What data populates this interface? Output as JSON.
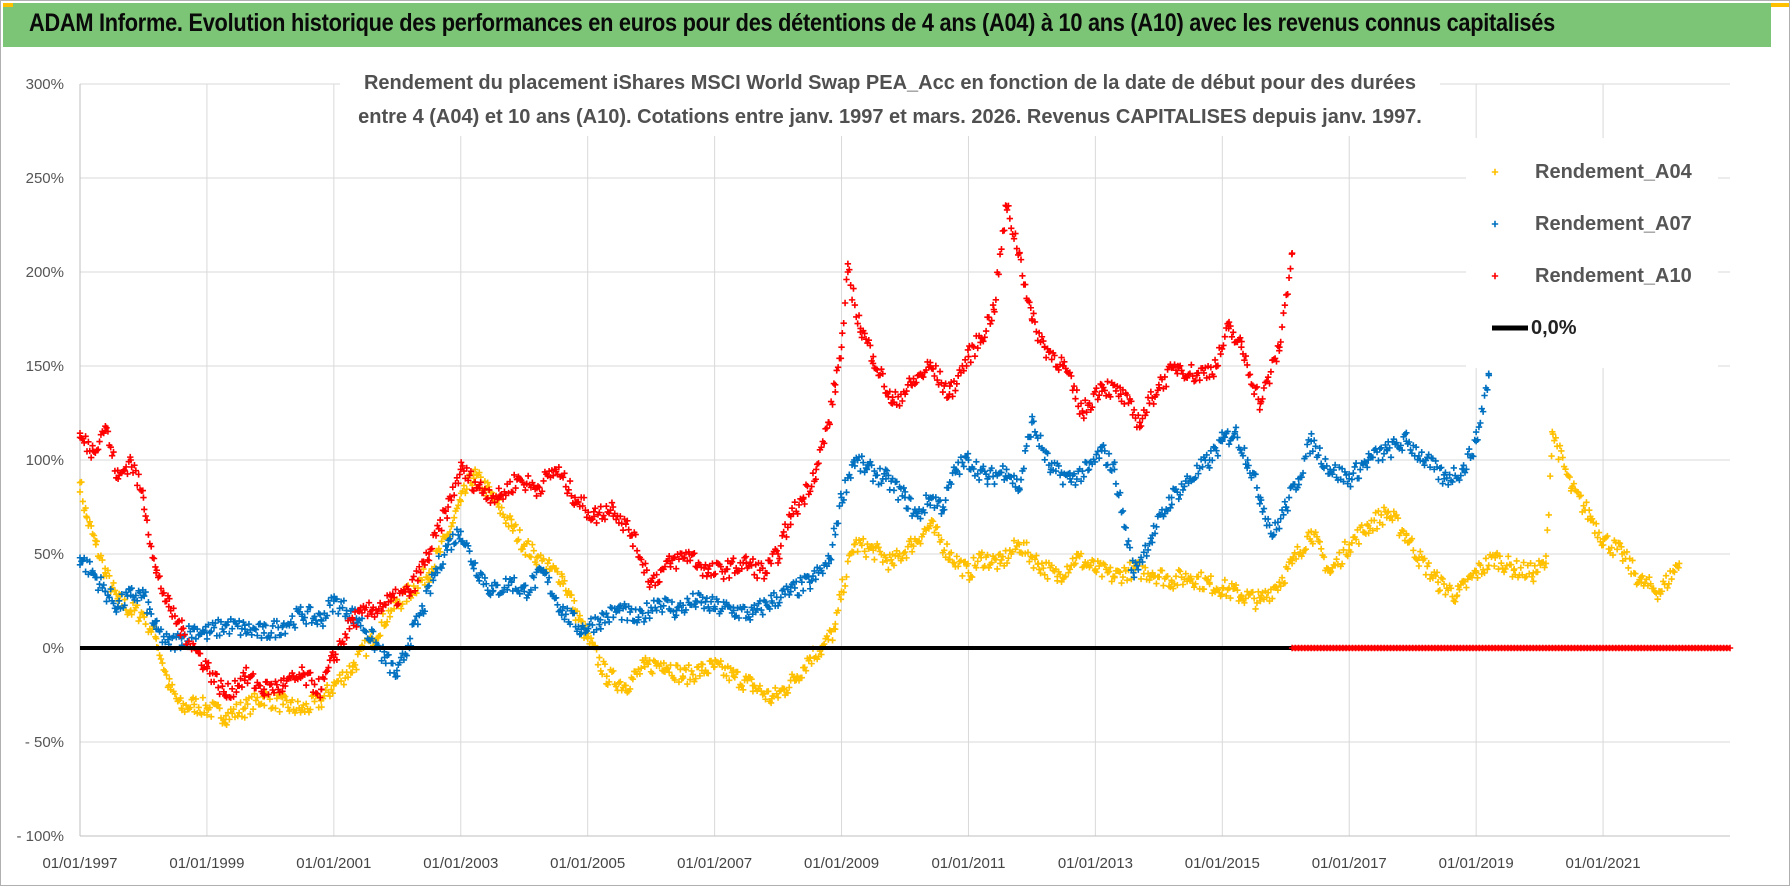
{
  "header": {
    "title": "ADAM Informe. Evolution historique des performances en euros pour des détentions de 4 ans (A04) à 10 ans (A10) avec les revenus connus capitalisés"
  },
  "colors": {
    "banner": "#7cc576",
    "banner_accent": "#ffc000",
    "a04": "#ffc000",
    "a07": "#0070c0",
    "a10": "#ff0000",
    "zero": "#000000",
    "grid": "#d9d9d9"
  },
  "chart_data": {
    "type": "scatter",
    "title_lines": [
      "Rendement du placement iShares MSCI World Swap PEA_Acc en fonction de la date de début pour des durées",
      "entre 4 (A04) et 10 ans (A10). Cotations entre janv. 1997 et mars. 2026. Revenus CAPITALISES depuis janv. 1997."
    ],
    "ylim": [
      -100,
      300
    ],
    "y_ticks": [
      300,
      250,
      200,
      150,
      100,
      50,
      0,
      -50,
      -100
    ],
    "y_tick_labels": [
      "300%",
      "250%",
      "200%",
      "150%",
      "100%",
      "50%",
      "0%",
      "- 50%",
      "- 100%"
    ],
    "xlim": [
      1997.0,
      2023.0
    ],
    "x_ticks": [
      1997,
      1999,
      2001,
      2003,
      2005,
      2007,
      2009,
      2011,
      2013,
      2015,
      2017,
      2019,
      2021
    ],
    "x_tick_labels": [
      "01/01/1997",
      "01/01/1999",
      "01/01/2001",
      "01/01/2003",
      "01/01/2005",
      "01/01/2007",
      "01/01/2009",
      "01/01/2011",
      "01/01/2013",
      "01/01/2015",
      "01/01/2017",
      "01/01/2019",
      "01/01/2021"
    ],
    "grid": true,
    "legend_position": "top-right",
    "series": [
      {
        "name": "Rendement_A04",
        "marker": "+",
        "color": "#ffc000",
        "x": [
          1997.0,
          1997.1,
          1997.25,
          1997.4,
          1997.6,
          1997.8,
          1998.0,
          1998.2,
          1998.4,
          1998.6,
          1998.8,
          1999.0,
          1999.3,
          1999.6,
          1999.9,
          2000.2,
          2000.5,
          2000.8,
          2001.0,
          2001.3,
          2001.6,
          2001.9,
          2002.2,
          2002.5,
          2002.8,
          2003.0,
          2003.2,
          2003.4,
          2003.6,
          2003.8,
          2004.0,
          2004.2,
          2004.4,
          2004.6,
          2004.8,
          2005.0,
          2005.3,
          2005.6,
          2005.9,
          2006.2,
          2006.5,
          2006.8,
          2007.0,
          2007.3,
          2007.6,
          2007.9,
          2008.1,
          2008.3,
          2008.5,
          2008.7,
          2008.9,
          2009.0,
          2009.2,
          2009.5,
          2009.8,
          2010.1,
          2010.4,
          2010.7,
          2011.0,
          2011.2,
          2011.5,
          2011.8,
          2012.1,
          2012.4,
          2012.7,
          2013.0,
          2013.3,
          2013.6,
          2013.9,
          2014.2,
          2014.5,
          2014.8,
          2015.0,
          2015.3,
          2015.6,
          2015.9,
          2016.1,
          2016.4,
          2016.7,
          2017.0,
          2017.3,
          2017.6,
          2017.9,
          2018.1,
          2018.4,
          2018.7,
          2019.0,
          2019.3,
          2019.6,
          2019.9,
          2020.1,
          2020.2,
          2020.5,
          2020.8,
          2021.0,
          2021.3,
          2021.6,
          2021.9,
          2022.2
        ],
        "y": [
          88,
          70,
          55,
          40,
          25,
          20,
          18,
          5,
          -20,
          -32,
          -30,
          -32,
          -36,
          -32,
          -26,
          -30,
          -33,
          -28,
          -20,
          -10,
          5,
          20,
          30,
          40,
          60,
          78,
          92,
          85,
          75,
          65,
          55,
          48,
          42,
          38,
          20,
          5,
          -15,
          -20,
          -10,
          -8,
          -15,
          -12,
          -10,
          -15,
          -20,
          -27,
          -22,
          -15,
          -5,
          0,
          10,
          30,
          55,
          52,
          45,
          55,
          65,
          50,
          40,
          48,
          45,
          55,
          45,
          38,
          48,
          42,
          38,
          42,
          40,
          36,
          38,
          34,
          32,
          28,
          25,
          35,
          45,
          62,
          40,
          55,
          65,
          72,
          60,
          48,
          35,
          28,
          40,
          48,
          42,
          40,
          45,
          115,
          85,
          70,
          58,
          50,
          35,
          30,
          45
        ]
      },
      {
        "name": "Rendement_A07",
        "marker": "+",
        "color": "#0070c0",
        "x": [
          1997.0,
          1997.2,
          1997.4,
          1997.6,
          1997.8,
          1998.0,
          1998.2,
          1998.4,
          1998.6,
          1998.8,
          1999.0,
          1999.3,
          1999.6,
          1999.9,
          2000.2,
          2000.5,
          2000.8,
          2001.0,
          2001.2,
          2001.4,
          2001.6,
          2001.8,
          2002.0,
          2002.2,
          2002.4,
          2002.6,
          2002.8,
          2003.0,
          2003.2,
          2003.5,
          2003.8,
          2004.0,
          2004.3,
          2004.6,
          2004.9,
          2005.2,
          2005.5,
          2005.8,
          2006.1,
          2006.4,
          2006.7,
          2007.0,
          2007.3,
          2007.6,
          2007.9,
          2008.2,
          2008.5,
          2008.8,
          2009.0,
          2009.2,
          2009.4,
          2009.7,
          2010.0,
          2010.2,
          2010.4,
          2010.6,
          2010.8,
          2011.0,
          2011.3,
          2011.6,
          2011.8,
          2012.0,
          2012.3,
          2012.6,
          2012.9,
          2013.1,
          2013.3,
          2013.6,
          2013.9,
          2014.2,
          2014.5,
          2014.8,
          2015.0,
          2015.2,
          2015.4,
          2015.6,
          2015.8,
          2016.0,
          2016.2,
          2016.4,
          2016.7,
          2017.0,
          2017.3,
          2017.6,
          2017.9,
          2018.2,
          2018.5,
          2018.8,
          2019.0,
          2019.2
        ],
        "y": [
          48,
          40,
          30,
          22,
          28,
          28,
          10,
          2,
          5,
          10,
          8,
          12,
          10,
          8,
          12,
          18,
          15,
          25,
          20,
          15,
          5,
          -5,
          -15,
          5,
          20,
          40,
          55,
          62,
          45,
          30,
          35,
          30,
          40,
          20,
          10,
          15,
          20,
          15,
          25,
          20,
          25,
          22,
          20,
          18,
          25,
          30,
          35,
          45,
          80,
          100,
          95,
          90,
          80,
          70,
          80,
          75,
          95,
          100,
          90,
          95,
          85,
          120,
          95,
          90,
          95,
          105,
          95,
          40,
          60,
          80,
          90,
          100,
          110,
          115,
          100,
          80,
          60,
          75,
          90,
          110,
          95,
          90,
          100,
          105,
          110,
          100,
          90,
          95,
          110,
          145
        ]
      },
      {
        "name": "Rendement_A10",
        "marker": "+",
        "color": "#ff0000",
        "x": [
          1997.0,
          1997.2,
          1997.4,
          1997.6,
          1997.8,
          1998.0,
          1998.2,
          1998.4,
          1998.6,
          1998.8,
          1999.0,
          1999.3,
          1999.6,
          1999.9,
          2000.2,
          2000.5,
          2000.8,
          2001.0,
          2001.3,
          2001.6,
          2001.9,
          2002.2,
          2002.5,
          2002.8,
          2003.0,
          2003.3,
          2003.6,
          2003.9,
          2004.2,
          2004.5,
          2004.8,
          2005.1,
          2005.4,
          2005.7,
          2006.0,
          2006.3,
          2006.6,
          2006.9,
          2007.2,
          2007.5,
          2007.8,
          2008.0,
          2008.2,
          2008.4,
          2008.6,
          2008.8,
          2008.9,
          2009.0,
          2009.1,
          2009.3,
          2009.5,
          2009.8,
          2010.1,
          2010.4,
          2010.7,
          2011.0,
          2011.2,
          2011.4,
          2011.6,
          2011.8,
          2012.0,
          2012.2,
          2012.5,
          2012.8,
          2013.1,
          2013.4,
          2013.7,
          2014.0,
          2014.3,
          2014.6,
          2014.9,
          2015.1,
          2015.3,
          2015.6,
          2015.9,
          2016.1
        ],
        "y": [
          112,
          105,
          118,
          90,
          100,
          80,
          40,
          22,
          10,
          0,
          -10,
          -25,
          -15,
          -22,
          -20,
          -15,
          -22,
          -5,
          15,
          20,
          25,
          30,
          50,
          75,
          95,
          85,
          80,
          90,
          85,
          95,
          80,
          70,
          75,
          60,
          35,
          45,
          50,
          40,
          42,
          45,
          40,
          50,
          70,
          80,
          95,
          120,
          140,
          160,
          200,
          170,
          155,
          130,
          140,
          150,
          135,
          155,
          165,
          180,
          235,
          210,
          175,
          160,
          150,
          125,
          140,
          135,
          120,
          140,
          150,
          145,
          150,
          170,
          160,
          130,
          160,
          210
        ]
      },
      {
        "name": "0,0%",
        "type": "line",
        "color": "#000000",
        "x": [
          1997.0,
          2016.1
        ],
        "y": [
          0,
          0
        ]
      }
    ],
    "zero_marker_series": {
      "color": "#ff0000",
      "x_range": [
        2016.1,
        2023.0
      ],
      "y": 0
    }
  }
}
